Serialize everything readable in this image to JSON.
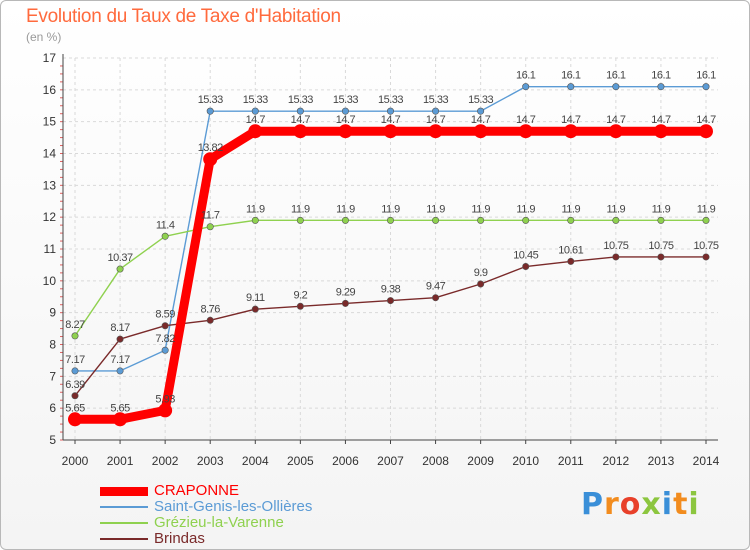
{
  "header": {
    "title": "Evolution du Taux de Taxe d'Habitation",
    "unit": "(en %)"
  },
  "chart_data": {
    "type": "line",
    "title": "Evolution du Taux de Taxe d'Habitation",
    "ylabel": "(en %)",
    "x": [
      "2000",
      "2001",
      "2002",
      "2003",
      "2004",
      "2005",
      "2006",
      "2007",
      "2008",
      "2009",
      "2010",
      "2011",
      "2012",
      "2013",
      "2014"
    ],
    "ylim": [
      5,
      17
    ],
    "yticks": [
      5,
      6,
      7,
      8,
      9,
      10,
      11,
      12,
      13,
      14,
      15,
      16,
      17
    ],
    "grid": true,
    "legend": "bottom-left",
    "series": [
      {
        "name": "CRAPONNE",
        "color": "#ff0000",
        "emphasis": true,
        "values": [
          5.65,
          5.65,
          5.93,
          13.82,
          14.7,
          14.7,
          14.7,
          14.7,
          14.7,
          14.7,
          14.7,
          14.7,
          14.7,
          14.7,
          14.7
        ],
        "labels": [
          "5.65",
          "5.65",
          "5.93",
          "13.82",
          "14.7",
          "14.7",
          "14.7",
          "14.7",
          "14.7",
          "14.7",
          "14.7",
          "14.7",
          "14.7",
          "14.7",
          "14.7"
        ]
      },
      {
        "name": "Saint-Genis-les-Ollières",
        "color": "#5b9bd5",
        "values": [
          7.17,
          7.17,
          7.82,
          15.33,
          15.33,
          15.33,
          15.33,
          15.33,
          15.33,
          15.33,
          16.1,
          16.1,
          16.1,
          16.1,
          16.1
        ],
        "labels": [
          "7.17",
          "7.17",
          "7.82",
          "15.33",
          "15.33",
          "15.33",
          "15.33",
          "15.33",
          "15.33",
          "15.33",
          "16.1",
          "16.1",
          "16.1",
          "16.1",
          "16.1"
        ]
      },
      {
        "name": "Grézieu-la-Varenne",
        "color": "#8fd14f",
        "values": [
          8.27,
          10.37,
          11.4,
          11.7,
          11.9,
          11.9,
          11.9,
          11.9,
          11.9,
          11.9,
          11.9,
          11.9,
          11.9,
          11.9,
          11.9
        ],
        "labels": [
          "8.27",
          "10.37",
          "11.4",
          "11.7",
          "11.9",
          "11.9",
          "11.9",
          "11.9",
          "11.9",
          "11.9",
          "11.9",
          "11.9",
          "11.9",
          "11.9",
          "11.9"
        ]
      },
      {
        "name": "Brindas",
        "color": "#7a2a2a",
        "values": [
          6.39,
          8.17,
          8.59,
          8.76,
          9.11,
          9.2,
          9.29,
          9.38,
          9.47,
          9.9,
          10.45,
          10.61,
          10.75,
          10.75,
          10.75
        ],
        "labels": [
          "6.39",
          "8.17",
          "8.59",
          "8.76",
          "9.11",
          "9.2",
          "9.29",
          "9.38",
          "9.47",
          "9.9",
          "10.45",
          "10.61",
          "10.75",
          "10.75",
          "10.75"
        ]
      }
    ]
  },
  "logo": {
    "text": "Proxiti",
    "letters": [
      "P",
      "r",
      "o",
      "x",
      "i",
      "t",
      "i"
    ],
    "colors": [
      "#3a8fd8",
      "#f28c1e",
      "#e8402a",
      "#8cc63f",
      "#3a8fd8",
      "#f28c1e",
      "#8cc63f"
    ]
  }
}
